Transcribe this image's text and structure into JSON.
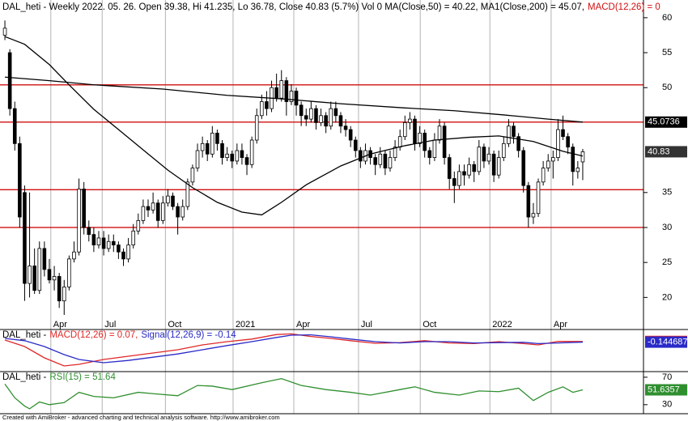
{
  "chart_data": [
    {
      "type": "candlestick",
      "title": "DAL_heti - Weekly 2022. 05. 26. Open 39.38, Hi 41.235, Lo 36.78, Close 40.83 (5.7%) Vol 0 MA(Close,50) = 40.22, MA1(Close,200) = 45.07,",
      "title_tail": "MACD(12,26) = 0",
      "xlim": [
        -0.5,
        129.3
      ],
      "ylim": [
        16.8,
        62.3
      ],
      "yticks": [
        20,
        25,
        30,
        35,
        50,
        55,
        60
      ],
      "xticks": [
        {
          "value": 9.3,
          "label": "Apr"
        },
        {
          "value": 19.7,
          "label": "Jul"
        },
        {
          "value": 32.5,
          "label": "Oct"
        },
        {
          "value": 46.2,
          "label": "2021"
        },
        {
          "value": 58.5,
          "label": "Apr"
        },
        {
          "value": 71.6,
          "label": "Jul"
        },
        {
          "value": 84.1,
          "label": "Oct"
        },
        {
          "value": 98.2,
          "label": "2022"
        },
        {
          "value": 110.6,
          "label": "Apr"
        }
      ],
      "grid": true,
      "hlines": [
        50.4,
        45.0736,
        35.4,
        30
      ],
      "hline_color": "#d01010",
      "up_color": "#ffffff",
      "down_color": "#000000",
      "last_close_tag_color": "#333333",
      "open": [
        57.5,
        55,
        47,
        42,
        35,
        22,
        24.5,
        21,
        27,
        24,
        22.5,
        23,
        19.5,
        21.5,
        25.5,
        26.5,
        35.5,
        30,
        29,
        27.5,
        28.5,
        27,
        28,
        27.5,
        26.5,
        25.5,
        27.5,
        29.5,
        31,
        33,
        32.5,
        33.5,
        31,
        33.5,
        34.5,
        33,
        31.5,
        33,
        36.5,
        38.5,
        41,
        42,
        40.5,
        43.5,
        42,
        40,
        40.5,
        39.5,
        41,
        40,
        39,
        42.5,
        46,
        48,
        47,
        50,
        48.5,
        51,
        48,
        49.5,
        47.5,
        46,
        45.5,
        47,
        45,
        46,
        44.5,
        47,
        46,
        44.5,
        44,
        42.5,
        41,
        39.5,
        41,
        40,
        39,
        40.5,
        38.5,
        40,
        41.5,
        43,
        45,
        45.5,
        42,
        43.5,
        41,
        40,
        42.5,
        44.5,
        40,
        37,
        36,
        38,
        37.5,
        39,
        38,
        41.5,
        39.5,
        40.5,
        37.5,
        40,
        42,
        44.5,
        43,
        41,
        36,
        31.5,
        32,
        36.5,
        38.5,
        39.5,
        40,
        44,
        43,
        41.5,
        38,
        39.38
      ],
      "high": [
        59.6,
        55.5,
        48,
        43,
        36,
        35,
        27,
        28,
        28,
        25.5,
        24.5,
        23.5,
        22.5,
        26,
        28,
        37,
        36.5,
        31,
        30,
        29.5,
        29.5,
        29,
        29,
        28,
        27,
        28.5,
        30.5,
        32,
        34,
        34,
        35,
        34,
        34.5,
        35.5,
        35,
        33.5,
        34,
        37,
        39,
        42,
        43,
        42.5,
        44.5,
        44,
        42.5,
        41.5,
        41,
        42,
        42,
        40.5,
        43,
        47,
        49,
        49.5,
        51,
        52,
        52.5,
        51.5,
        50.5,
        50,
        48,
        47,
        48,
        47.5,
        47,
        46.5,
        48,
        48,
        46.5,
        45.5,
        44.5,
        43,
        41.5,
        42,
        41.5,
        40.5,
        41.5,
        41,
        41,
        42.5,
        44,
        46,
        46.5,
        46,
        44.5,
        44,
        41.5,
        43.5,
        45.5,
        45,
        40.5,
        38,
        39,
        39,
        40,
        39.5,
        42.5,
        42,
        41.5,
        41,
        41,
        43,
        45.5,
        45,
        43.5,
        41.5,
        36.5,
        33.5,
        37,
        39.5,
        40.5,
        41,
        45.5,
        46,
        43.5,
        42,
        39.5,
        41.235
      ],
      "low": [
        56.8,
        46,
        41,
        30,
        19.5,
        20,
        20.5,
        20.5,
        23,
        22,
        21,
        18.5,
        17.5,
        21,
        25,
        26,
        29,
        28,
        26.5,
        27,
        26,
        26.5,
        26.5,
        25.5,
        24.5,
        25,
        27,
        29,
        30.5,
        31.5,
        32,
        30,
        30.5,
        33,
        32.5,
        29,
        31,
        32.5,
        36,
        38,
        40,
        39.5,
        40,
        41,
        39,
        39.5,
        38.5,
        39,
        39,
        37.5,
        38.5,
        42,
        45.5,
        46,
        46.5,
        48,
        48,
        46,
        47.5,
        46,
        44.5,
        44.5,
        45,
        44,
        44.5,
        43.5,
        44,
        45,
        43.5,
        43,
        41.5,
        40,
        38.5,
        39,
        39,
        37.5,
        38.5,
        37.5,
        38,
        39.5,
        41,
        42.5,
        44,
        41,
        41.5,
        40,
        39,
        39.5,
        42,
        39,
        35.5,
        33.5,
        35.5,
        36,
        37,
        36.5,
        37.5,
        38.5,
        39,
        36.5,
        37,
        39.5,
        41.5,
        42,
        40,
        35,
        30,
        30.5,
        31.5,
        36,
        38,
        37,
        39.5,
        42.5,
        40.5,
        36,
        37,
        36.78
      ],
      "close": [
        58.5,
        47,
        42,
        31.5,
        22,
        24.5,
        21,
        27,
        24,
        22.5,
        23,
        19.5,
        21.5,
        25.5,
        26.5,
        35.5,
        30,
        29,
        27.5,
        28.5,
        27,
        28,
        27.5,
        26.5,
        25.5,
        27.5,
        29.5,
        31,
        33,
        32.5,
        33.5,
        31,
        33.5,
        34.5,
        33,
        31.5,
        33,
        36.5,
        38.5,
        41,
        42,
        40.5,
        43.5,
        42,
        40,
        40.5,
        39.5,
        41,
        40,
        39,
        42.5,
        46,
        48,
        47,
        50,
        48.5,
        51,
        48,
        49.5,
        47.5,
        46,
        45.5,
        47,
        45,
        46,
        44.5,
        47,
        46,
        44.5,
        44,
        42.5,
        41,
        39.5,
        41,
        40,
        39,
        40.5,
        38.5,
        40,
        41.5,
        43,
        45,
        45.5,
        42,
        43.5,
        41,
        40,
        42.5,
        44.5,
        40,
        37,
        36,
        38,
        37.5,
        39,
        38,
        41.5,
        39.5,
        40.5,
        37.5,
        40,
        42,
        44.5,
        43,
        41,
        36,
        31.5,
        32,
        36.5,
        38.5,
        39.5,
        40,
        44,
        43,
        41.5,
        38,
        38.5,
        40.83
      ],
      "series": [
        {
          "color": "#000000",
          "x": [
            0,
            4,
            9,
            13,
            18,
            23,
            28,
            33,
            38,
            43,
            48,
            52,
            56,
            61,
            68,
            74,
            81,
            87,
            94,
            100,
            107,
            113,
            117
          ],
          "values": [
            57.3,
            56.2,
            53.3,
            50.4,
            46.9,
            44,
            41.1,
            38.2,
            35.7,
            33.6,
            32.2,
            31.8,
            33.6,
            36.1,
            38.8,
            40.5,
            41.7,
            42.5,
            42.9,
            43.1,
            42.3,
            40.9,
            40.22
          ]
        },
        {
          "color": "#000000",
          "tag": true,
          "x": [
            0,
            9,
            18,
            32,
            45,
            56,
            68,
            81,
            91,
            101,
            110,
            117
          ],
          "values": [
            51.5,
            51,
            50.4,
            49.8,
            48.9,
            48.4,
            47.7,
            47.1,
            46.7,
            46.1,
            45.5,
            45.0736
          ]
        }
      ]
    },
    {
      "type": "line",
      "title": "DAL_heti -",
      "ylim": [
        -9,
        3
      ],
      "series": [
        {
          "name": "MACD(12,26) = 0.07,",
          "color": "#e02828",
          "tag": true,
          "x": [
            0,
            4,
            8,
            12,
            15,
            20,
            25,
            30,
            35,
            40,
            45,
            50,
            55,
            58,
            62,
            66,
            70,
            75,
            80,
            85,
            90,
            95,
            100,
            105,
            108,
            112,
            117
          ],
          "values": [
            0.5,
            -1.5,
            -5,
            -7.5,
            -7,
            -5.5,
            -4.5,
            -3.5,
            -2.5,
            -1,
            0,
            0.8,
            2.2,
            2.4,
            1.6,
            1,
            0.3,
            -0.5,
            -0.3,
            0.3,
            -0.4,
            -0.6,
            0,
            -0.6,
            -1,
            0.1,
            0.065508
          ]
        },
        {
          "name": "Signal(12,26,9) = -0.14",
          "color": "#2a2ac8",
          "tag": true,
          "x": [
            0,
            4,
            8,
            12,
            15,
            20,
            25,
            30,
            35,
            40,
            45,
            50,
            55,
            58,
            62,
            66,
            70,
            75,
            80,
            85,
            90,
            95,
            100,
            105,
            108,
            112,
            117
          ],
          "values": [
            1,
            0.3,
            -1.5,
            -4,
            -5.5,
            -6.5,
            -5.8,
            -4.8,
            -3.8,
            -2.5,
            -1.2,
            0,
            1.3,
            2,
            2.1,
            1.5,
            0.8,
            0,
            -0.4,
            0,
            0,
            -0.4,
            -0.3,
            -0.2,
            -0.6,
            -0.4,
            -0.144687
          ]
        }
      ]
    },
    {
      "type": "line",
      "title": "DAL_heti -",
      "ylim": [
        18,
        77
      ],
      "yticks": [
        30,
        70
      ],
      "series": [
        {
          "name": "RSI(15) = 51.64",
          "color": "#2f8f2f",
          "tag": true,
          "x": [
            0,
            2,
            4,
            5,
            7,
            9,
            12,
            15,
            18,
            22,
            27,
            30,
            35,
            39,
            42,
            46,
            52,
            56,
            60,
            65,
            70,
            74,
            80,
            83,
            87,
            92,
            96,
            100,
            104,
            107,
            110,
            113,
            115,
            117
          ],
          "values": [
            60,
            40,
            28,
            24,
            34,
            30,
            33,
            48,
            42,
            40,
            48,
            46,
            43,
            58,
            57,
            52,
            62,
            68,
            58,
            52,
            48,
            44,
            52,
            56,
            48,
            44,
            50,
            49,
            54,
            36,
            48,
            56,
            48,
            51.6357
          ]
        }
      ]
    }
  ],
  "footer": "Created with AmiBroker - advanced charting and technical analysis software. http://www.amibroker.com"
}
